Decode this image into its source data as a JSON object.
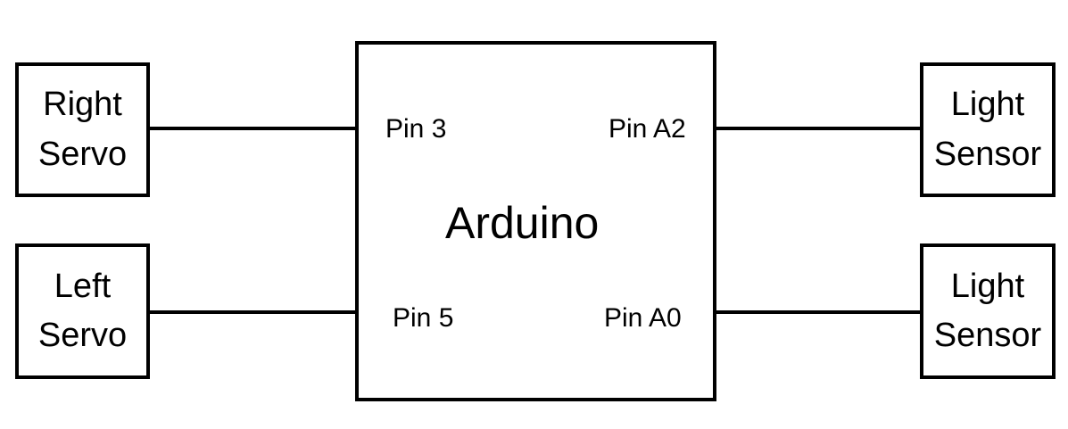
{
  "devices": {
    "right_servo": {
      "line1": "Right",
      "line2": "Servo"
    },
    "left_servo": {
      "line1": "Left",
      "line2": "Servo"
    },
    "light_sensor_top": {
      "line1": "Light",
      "line2": "Sensor"
    },
    "light_sensor_bottom": {
      "line1": "Light",
      "line2": "Sensor"
    }
  },
  "arduino": {
    "label": "Arduino",
    "pins": {
      "pin_3": "Pin 3",
      "pin_5": "Pin 5",
      "pin_a2": "Pin A2",
      "pin_a0": "Pin A0"
    }
  }
}
